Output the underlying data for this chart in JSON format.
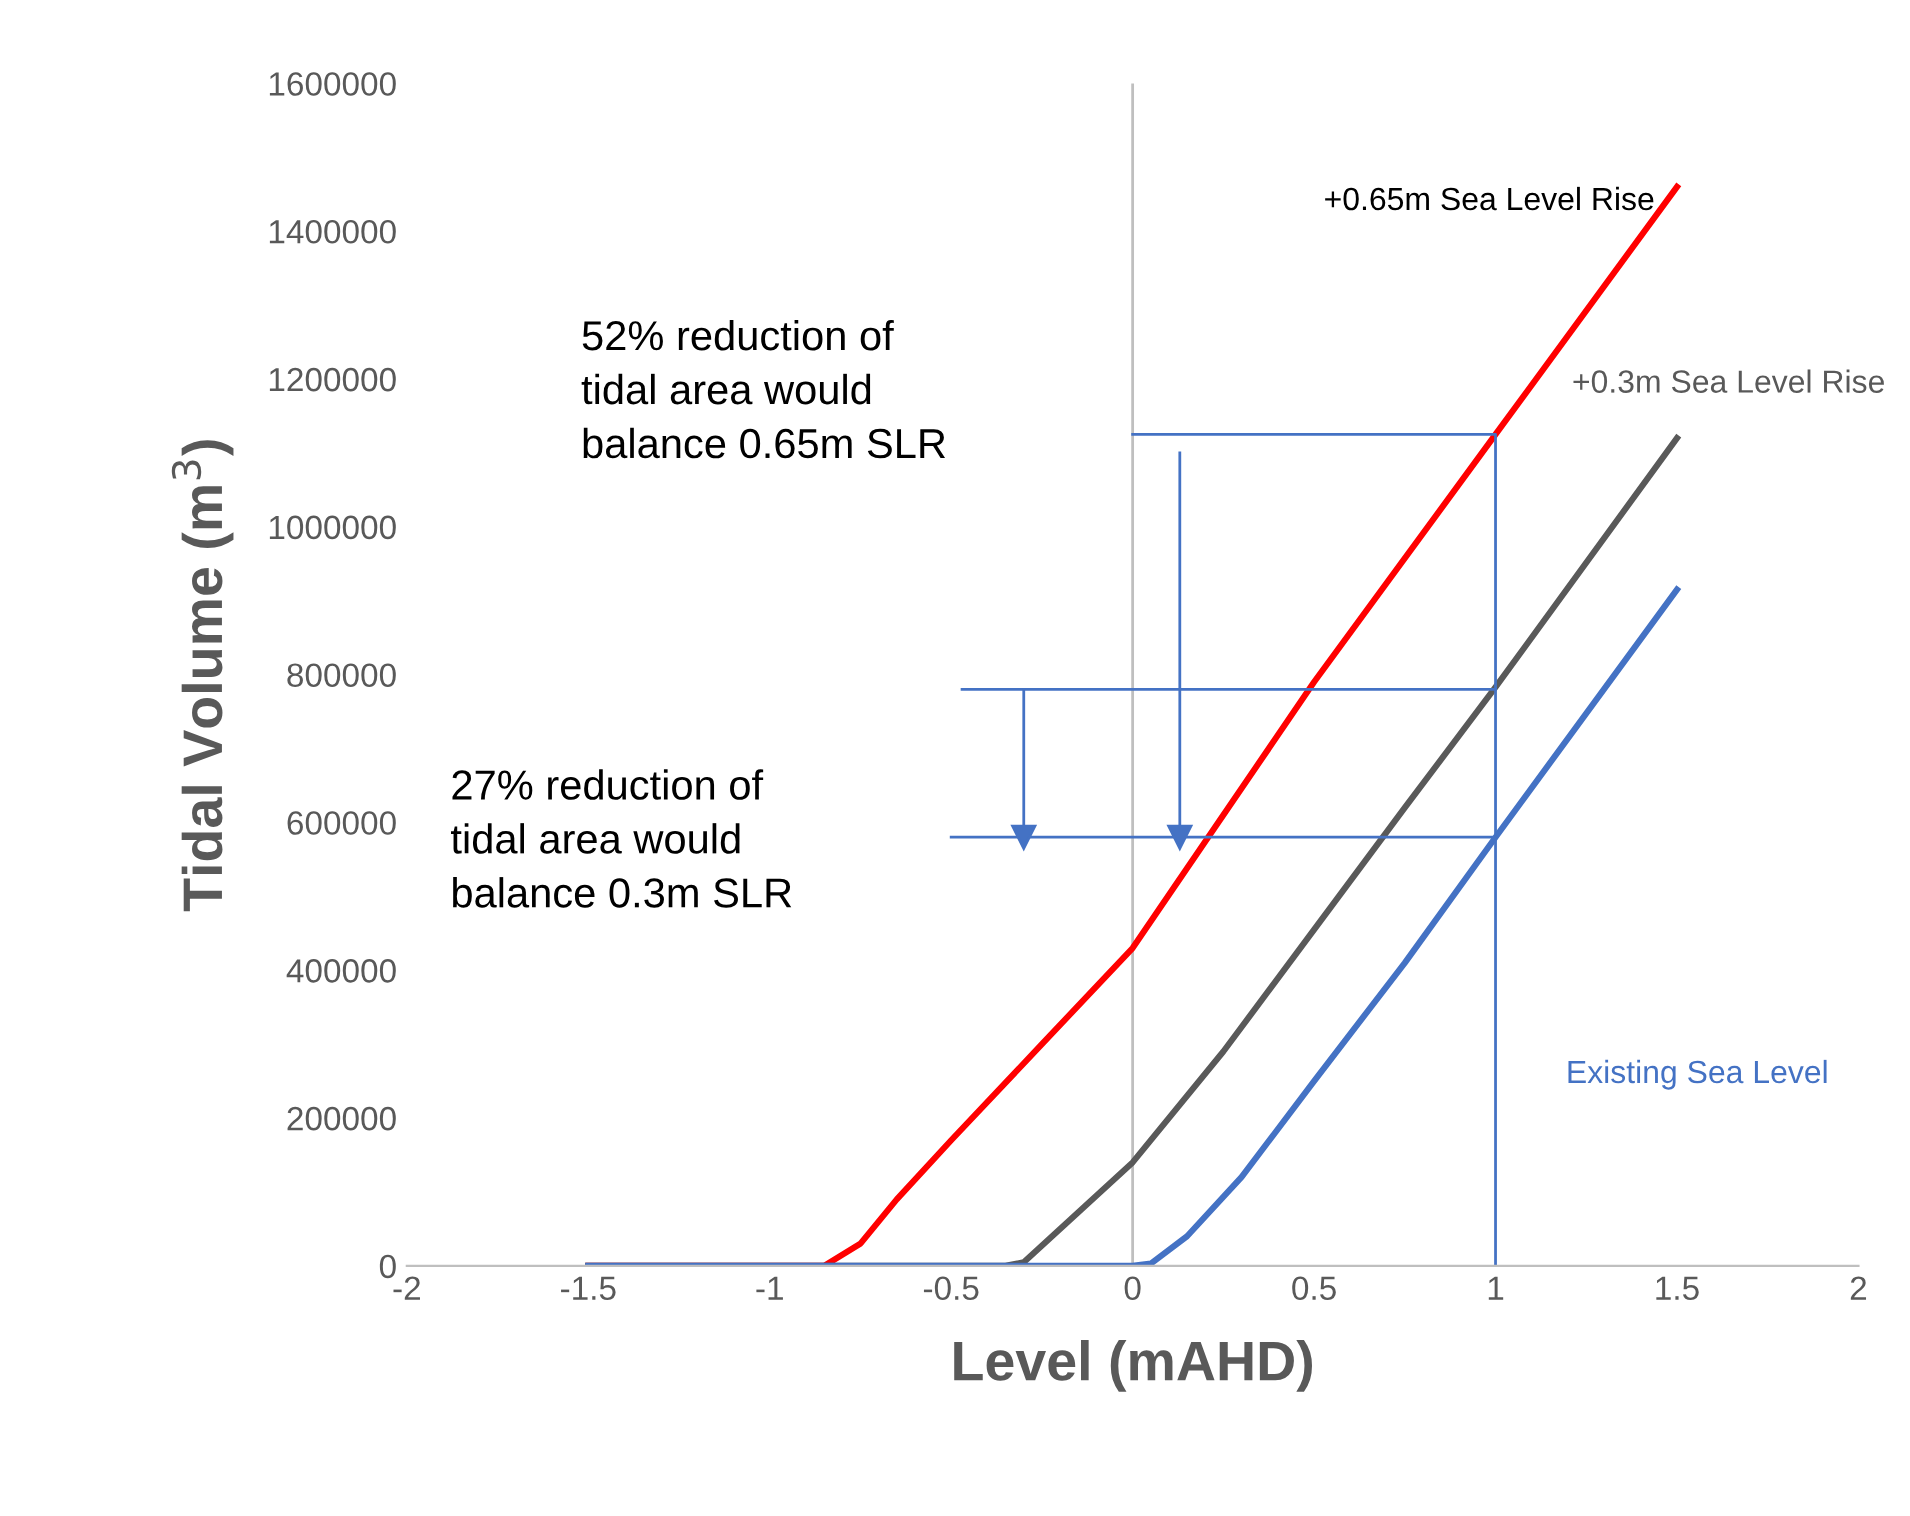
{
  "chart_data": {
    "type": "line",
    "xlabel": "Level (mAHD)",
    "ylabel": "Tidal Volume (m$^{3}$)",
    "xlim": [
      -2,
      2
    ],
    "xticks": [
      -2,
      -1.5,
      -1,
      -0.5,
      0,
      0.5,
      1,
      1.5,
      2
    ],
    "ylim": [
      0,
      1600000
    ],
    "yticks": [
      0,
      200000,
      400000,
      600000,
      800000,
      1000000,
      1200000,
      1400000,
      1600000
    ],
    "grid": false,
    "legend": false,
    "marker": "none",
    "line_style": "solid",
    "series": [
      {
        "name": "+0.65m Sea Level Rise",
        "color": "#ff0000",
        "x": [
          -1.5,
          -0.85,
          -0.75,
          -0.65,
          -0.5,
          -0.25,
          0,
          0.25,
          0.5,
          1,
          1.5
        ],
        "values": [
          0,
          0,
          30000,
          90000,
          170000,
          300000,
          430000,
          610000,
          790000,
          1125000,
          1460000
        ]
      },
      {
        "name": "+0.3m Sea Level Rise",
        "color": "#595959",
        "x": [
          -1.5,
          -0.35,
          -0.3,
          -0.2,
          0,
          0.25,
          0.5,
          0.75,
          1,
          1.5
        ],
        "values": [
          0,
          0,
          5000,
          50000,
          140000,
          290000,
          455000,
          620000,
          783000,
          1120000
        ]
      },
      {
        "name": "Existing Sea Level",
        "color": "#4472c4",
        "x": [
          -1.5,
          0,
          0.05,
          0.15,
          0.3,
          0.5,
          0.75,
          1,
          1.5
        ],
        "values": [
          0,
          0,
          3000,
          40000,
          120000,
          250000,
          410000,
          580000,
          915000
        ]
      },
      {
        "color": "#4472c4",
        "x": [
          0,
          1,
          1
        ],
        "values": [
          1125000,
          1125000,
          0
        ]
      },
      {
        "color": "#4472c4",
        "x": [
          -0.47,
          1
        ],
        "values": [
          780000,
          780000
        ]
      },
      {
        "color": "#4472c4",
        "x": [
          -0.5,
          1
        ],
        "values": [
          580000,
          580000
        ]
      },
      {
        "color": "#4472c4",
        "marker": "triangle",
        "x": [
          -0.3,
          -0.3
        ],
        "values": [
          780000,
          580000
        ]
      },
      {
        "color": "#4472c4",
        "marker": "triangle",
        "x": [
          0.13,
          0.13
        ],
        "values": [
          1100000,
          580000
        ]
      }
    ],
    "ref_lines": [
      {
        "axis": "x",
        "value": 0,
        "color": "#bfbfbf"
      }
    ],
    "annotations": [
      "52% reduction of\ntidal area would\nbalance 0.65m SLR",
      "27% reduction of\ntidal area would\nbalance 0.3m SLR"
    ]
  }
}
